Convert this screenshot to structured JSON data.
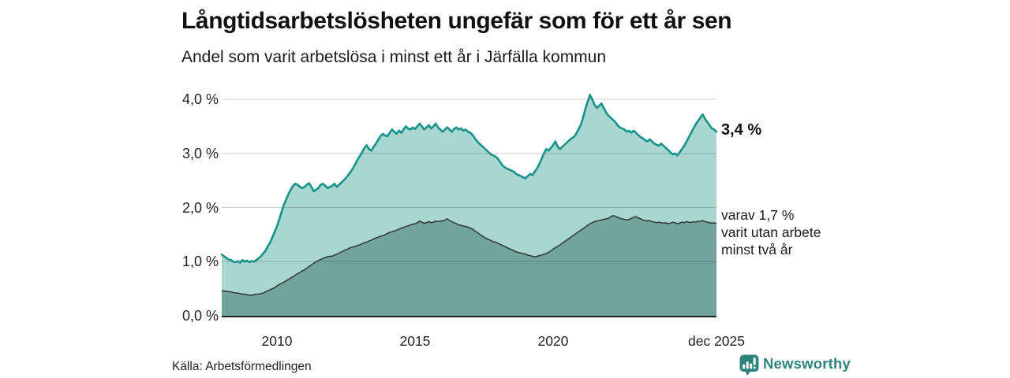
{
  "chart_data": {
    "type": "area",
    "title": "Långtidsarbetslösheten ungefär som för ett år sen",
    "subtitle": "Andel som varit arbetslösa i minst ett år i Järfälla kommun",
    "x_range": {
      "start": "2008-01",
      "end": "2025-12",
      "frequency": "monthly"
    },
    "x_ticks": [
      {
        "label": "2010",
        "month_index": 24
      },
      {
        "label": "2015",
        "month_index": 84
      },
      {
        "label": "2020",
        "month_index": 144
      },
      {
        "label": "dec 2025",
        "month_index": 215
      }
    ],
    "y_ticks": [
      {
        "label": "0,0 %",
        "value": 0.0
      },
      {
        "label": "1,0 %",
        "value": 1.0
      },
      {
        "label": "2,0 %",
        "value": 2.0
      },
      {
        "label": "3,0 %",
        "value": 3.0
      },
      {
        "label": "4,0 %",
        "value": 4.0
      }
    ],
    "ylim": [
      0,
      4.0
    ],
    "grid": "horizontal",
    "legend_position": "right-annotations",
    "annotations": {
      "total_end_label": "3,4 %",
      "secondary_end_label": "varav 1,7 %\nvarit utan arbete\nminst två år"
    },
    "series": [
      {
        "name": "Andel arbetslösa minst ett år",
        "latest_value_pct": 3.4,
        "fill": "#a9d6d0",
        "line": "#15938a",
        "values": [
          1.13,
          1.1,
          1.07,
          1.04,
          1.03,
          1.0,
          0.99,
          1.01,
          0.98,
          1.03,
          1.0,
          1.02,
          0.99,
          1.01,
          1.0,
          1.03,
          1.06,
          1.1,
          1.15,
          1.2,
          1.28,
          1.35,
          1.45,
          1.55,
          1.65,
          1.78,
          1.92,
          2.05,
          2.15,
          2.25,
          2.33,
          2.4,
          2.44,
          2.42,
          2.38,
          2.36,
          2.38,
          2.42,
          2.45,
          2.38,
          2.3,
          2.33,
          2.36,
          2.42,
          2.44,
          2.4,
          2.36,
          2.38,
          2.4,
          2.44,
          2.38,
          2.42,
          2.46,
          2.5,
          2.55,
          2.6,
          2.66,
          2.72,
          2.8,
          2.88,
          2.95,
          3.02,
          3.1,
          3.15,
          3.08,
          3.05,
          3.12,
          3.18,
          3.25,
          3.32,
          3.36,
          3.33,
          3.32,
          3.38,
          3.44,
          3.4,
          3.36,
          3.42,
          3.38,
          3.44,
          3.5,
          3.46,
          3.44,
          3.48,
          3.45,
          3.5,
          3.55,
          3.5,
          3.44,
          3.48,
          3.52,
          3.46,
          3.5,
          3.55,
          3.48,
          3.44,
          3.4,
          3.44,
          3.48,
          3.44,
          3.4,
          3.45,
          3.48,
          3.44,
          3.46,
          3.42,
          3.44,
          3.4,
          3.38,
          3.34,
          3.28,
          3.22,
          3.18,
          3.14,
          3.1,
          3.06,
          3.02,
          2.98,
          2.96,
          2.94,
          2.9,
          2.84,
          2.78,
          2.74,
          2.72,
          2.7,
          2.68,
          2.66,
          2.62,
          2.6,
          2.58,
          2.56,
          2.54,
          2.58,
          2.62,
          2.6,
          2.66,
          2.72,
          2.8,
          2.9,
          3.0,
          3.08,
          3.05,
          3.1,
          3.15,
          3.22,
          3.12,
          3.08,
          3.12,
          3.16,
          3.2,
          3.24,
          3.28,
          3.3,
          3.36,
          3.44,
          3.52,
          3.66,
          3.82,
          3.95,
          4.08,
          4.0,
          3.9,
          3.84,
          3.88,
          3.92,
          3.84,
          3.76,
          3.7,
          3.66,
          3.62,
          3.58,
          3.52,
          3.48,
          3.46,
          3.44,
          3.4,
          3.42,
          3.38,
          3.42,
          3.38,
          3.34,
          3.3,
          3.28,
          3.24,
          3.22,
          3.26,
          3.22,
          3.18,
          3.16,
          3.14,
          3.18,
          3.14,
          3.1,
          3.06,
          3.02,
          2.98,
          3.0,
          2.96,
          3.02,
          3.08,
          3.14,
          3.22,
          3.3,
          3.38,
          3.46,
          3.54,
          3.6,
          3.66,
          3.72,
          3.64,
          3.58,
          3.52,
          3.46,
          3.44,
          3.4
        ]
      },
      {
        "name": "varav utan arbete minst två år",
        "latest_value_pct": 1.7,
        "fill": "#72a49e",
        "line": "#333f3c",
        "values": [
          0.47,
          0.46,
          0.45,
          0.45,
          0.44,
          0.43,
          0.42,
          0.42,
          0.41,
          0.4,
          0.4,
          0.39,
          0.38,
          0.38,
          0.39,
          0.4,
          0.4,
          0.41,
          0.42,
          0.44,
          0.46,
          0.48,
          0.5,
          0.52,
          0.55,
          0.58,
          0.6,
          0.62,
          0.65,
          0.67,
          0.7,
          0.72,
          0.75,
          0.78,
          0.8,
          0.83,
          0.85,
          0.88,
          0.91,
          0.94,
          0.97,
          1.0,
          1.02,
          1.04,
          1.06,
          1.08,
          1.09,
          1.1,
          1.1,
          1.12,
          1.14,
          1.16,
          1.18,
          1.2,
          1.22,
          1.24,
          1.26,
          1.27,
          1.28,
          1.3,
          1.31,
          1.33,
          1.35,
          1.36,
          1.38,
          1.4,
          1.42,
          1.44,
          1.45,
          1.47,
          1.48,
          1.5,
          1.52,
          1.54,
          1.55,
          1.57,
          1.58,
          1.6,
          1.62,
          1.63,
          1.65,
          1.66,
          1.68,
          1.69,
          1.7,
          1.72,
          1.75,
          1.73,
          1.71,
          1.72,
          1.74,
          1.72,
          1.73,
          1.75,
          1.74,
          1.75,
          1.75,
          1.77,
          1.79,
          1.76,
          1.74,
          1.72,
          1.7,
          1.68,
          1.67,
          1.66,
          1.65,
          1.64,
          1.62,
          1.6,
          1.57,
          1.54,
          1.51,
          1.48,
          1.45,
          1.43,
          1.41,
          1.39,
          1.37,
          1.36,
          1.34,
          1.32,
          1.3,
          1.28,
          1.26,
          1.24,
          1.22,
          1.2,
          1.18,
          1.17,
          1.16,
          1.15,
          1.14,
          1.12,
          1.11,
          1.1,
          1.09,
          1.1,
          1.11,
          1.12,
          1.14,
          1.15,
          1.17,
          1.2,
          1.23,
          1.26,
          1.28,
          1.31,
          1.34,
          1.37,
          1.4,
          1.43,
          1.46,
          1.49,
          1.52,
          1.55,
          1.58,
          1.61,
          1.64,
          1.67,
          1.7,
          1.72,
          1.74,
          1.75,
          1.76,
          1.77,
          1.78,
          1.79,
          1.8,
          1.83,
          1.85,
          1.84,
          1.82,
          1.8,
          1.79,
          1.78,
          1.77,
          1.78,
          1.8,
          1.82,
          1.83,
          1.81,
          1.79,
          1.77,
          1.76,
          1.75,
          1.76,
          1.74,
          1.73,
          1.72,
          1.73,
          1.72,
          1.71,
          1.72,
          1.7,
          1.71,
          1.73,
          1.72,
          1.7,
          1.71,
          1.73,
          1.72,
          1.74,
          1.73,
          1.72,
          1.74,
          1.73,
          1.75,
          1.74,
          1.76,
          1.74,
          1.73,
          1.72,
          1.71,
          1.72,
          1.7
        ]
      }
    ]
  },
  "footer": {
    "source": "Källa: Arbetsförmedlingen",
    "brand": "Newsworthy",
    "brand_color": "#2e837c"
  }
}
